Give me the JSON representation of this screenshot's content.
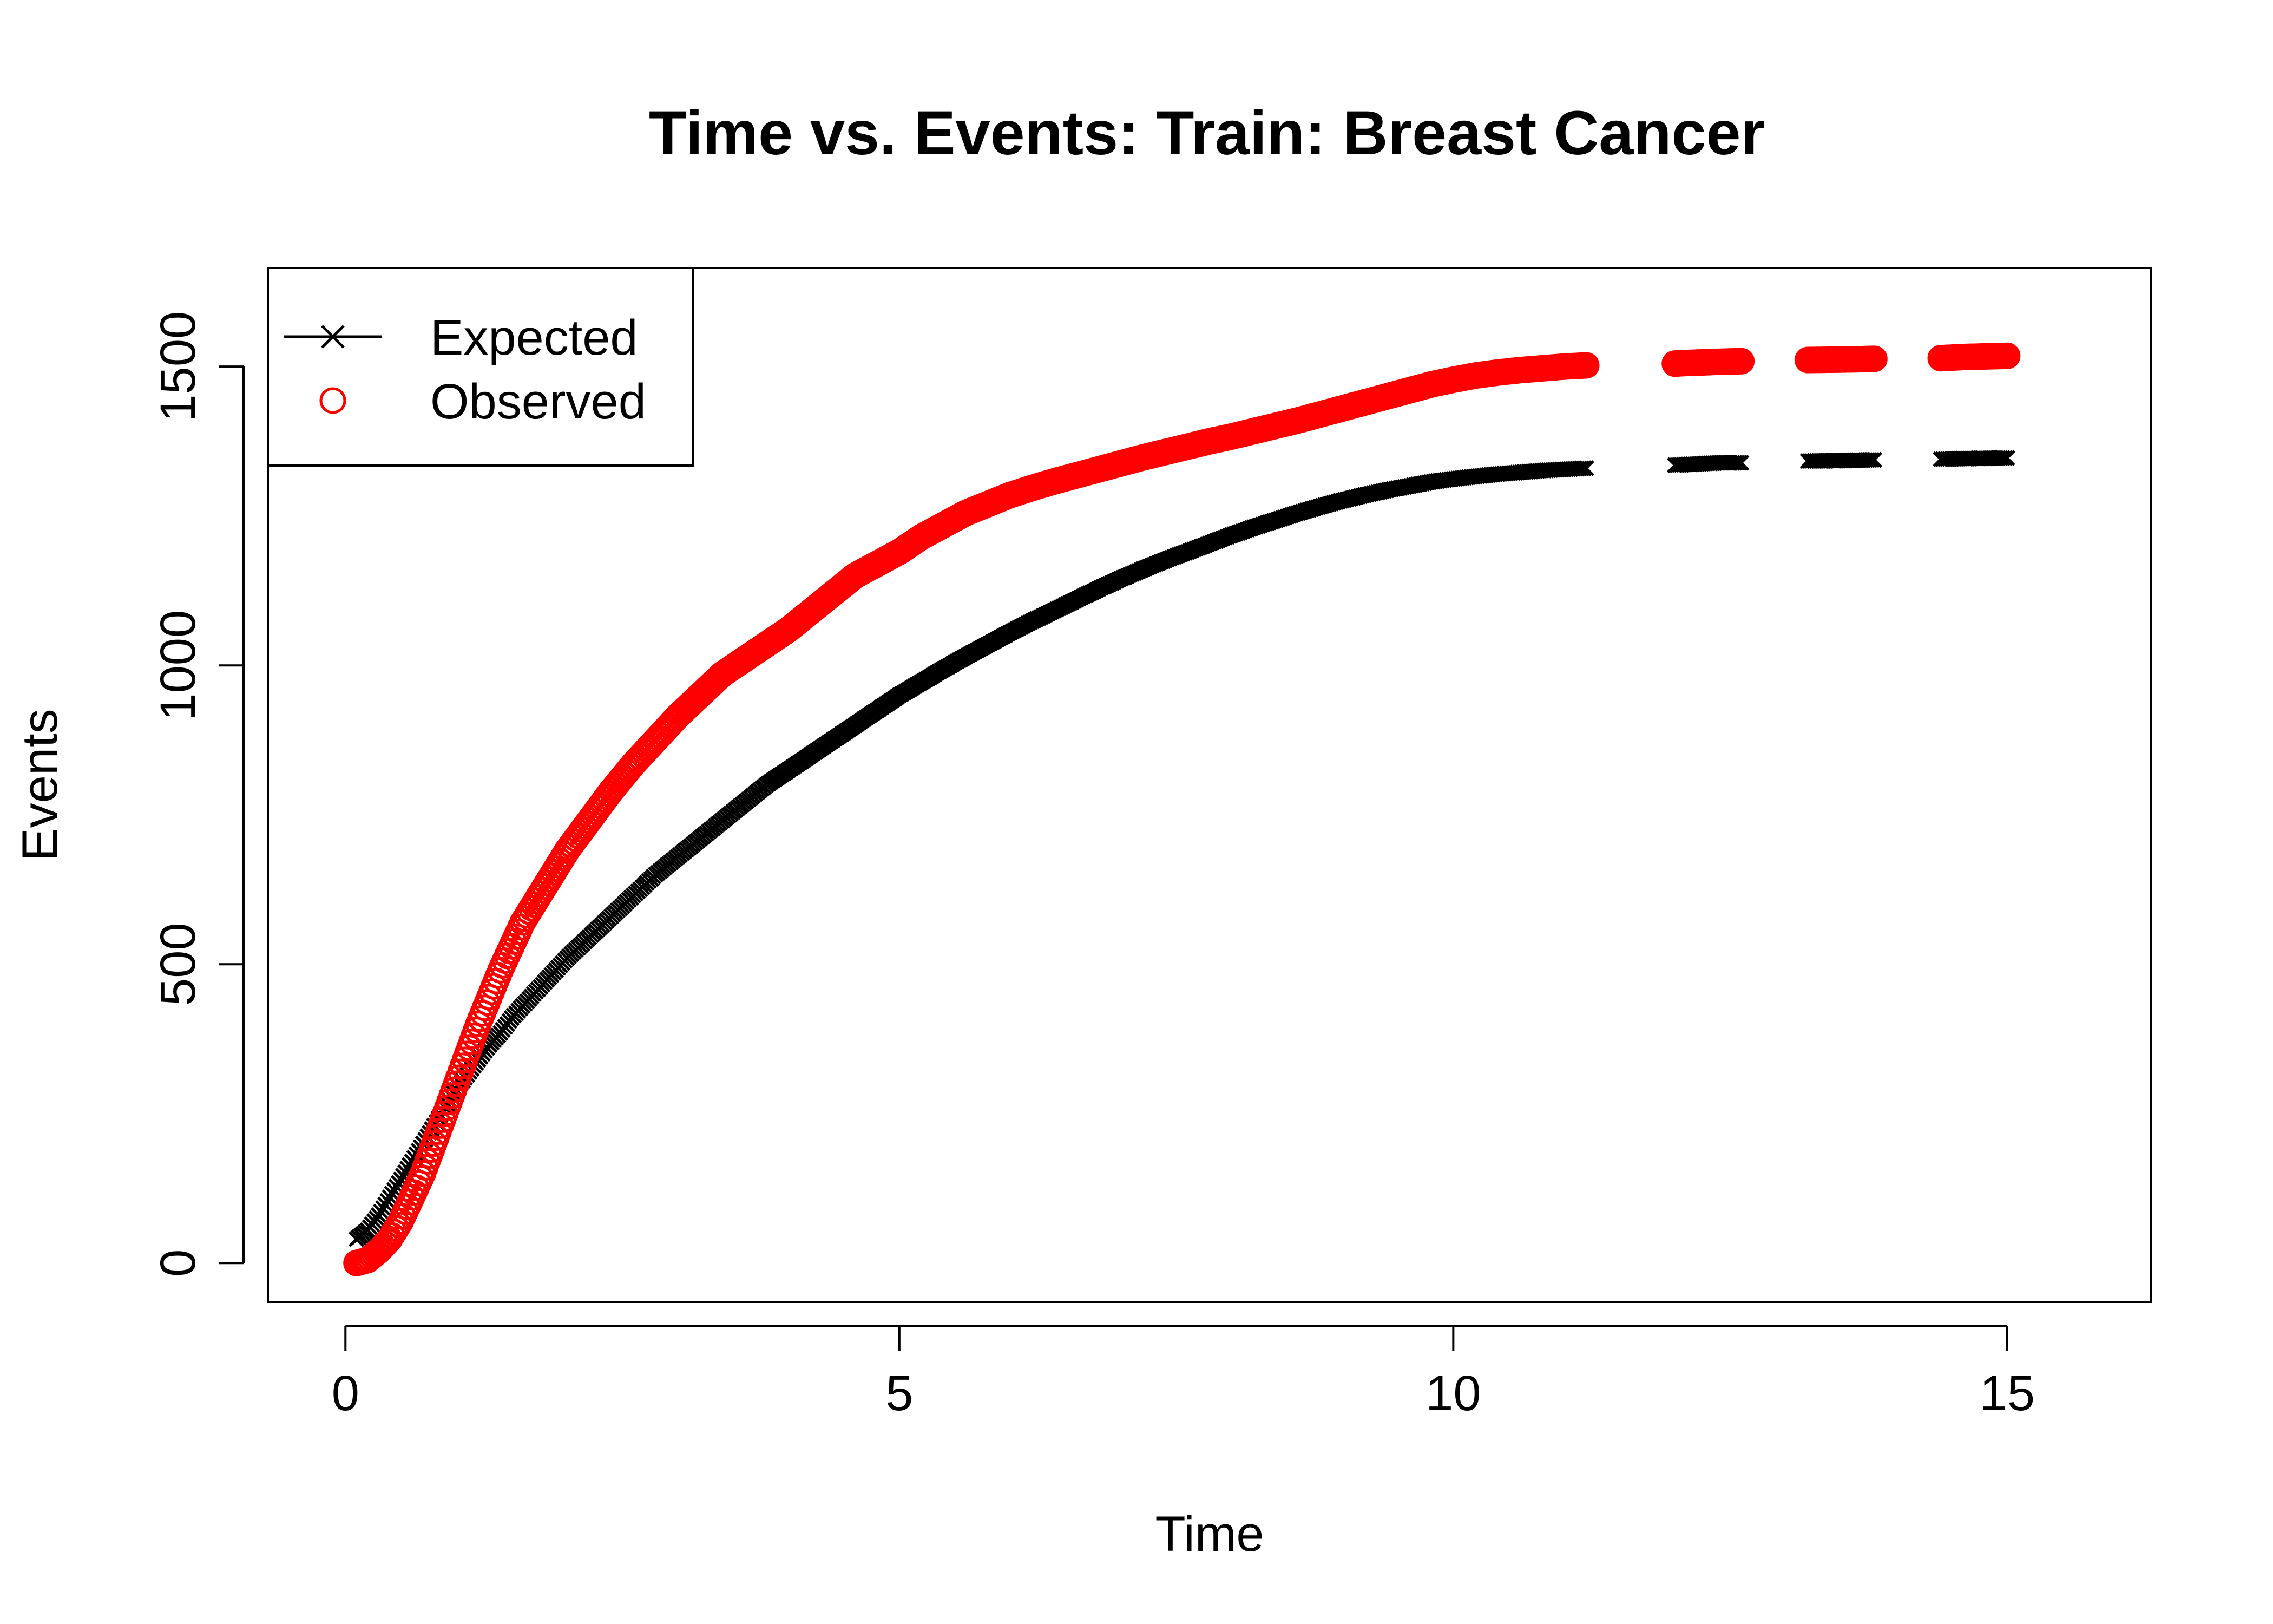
{
  "chart_data": {
    "type": "scatter",
    "title": "Time vs. Events: Train: Breast Cancer",
    "xlabel": "Time",
    "ylabel": "Events",
    "xlim": [
      -0.7,
      16.3
    ],
    "ylim": [
      -65,
      1665
    ],
    "x_ticks": [
      0,
      5,
      10,
      15
    ],
    "x_tick_labels": [
      "0",
      "5",
      "10",
      "15"
    ],
    "y_ticks": [
      0,
      500,
      1000,
      1500
    ],
    "y_tick_labels": [
      "0",
      "500",
      "1000",
      "1500"
    ],
    "legend": {
      "position": "top-left",
      "entries": [
        "Expected",
        "Observed"
      ]
    },
    "colors": {
      "expected": "#000000",
      "observed": "#ff0000",
      "axis": "#000000"
    },
    "series": [
      {
        "name": "Expected",
        "marker": "x",
        "color": "#000000",
        "points": [
          [
            0.1,
            40
          ],
          [
            0.2,
            55
          ],
          [
            0.3,
            80
          ],
          [
            0.4,
            110
          ],
          [
            0.5,
            140
          ],
          [
            0.6,
            170
          ],
          [
            0.7,
            200
          ],
          [
            0.8,
            230
          ],
          [
            0.9,
            260
          ],
          [
            1.0,
            290
          ],
          [
            1.1,
            315
          ],
          [
            1.2,
            340
          ],
          [
            1.3,
            365
          ],
          [
            1.4,
            385
          ],
          [
            1.5,
            410
          ],
          [
            1.6,
            430
          ],
          [
            1.7,
            450
          ],
          [
            1.8,
            470
          ],
          [
            1.9,
            490
          ],
          [
            2.0,
            510
          ],
          [
            2.2,
            545
          ],
          [
            2.4,
            580
          ],
          [
            2.6,
            615
          ],
          [
            2.8,
            650
          ],
          [
            3.0,
            680
          ],
          [
            3.2,
            710
          ],
          [
            3.4,
            740
          ],
          [
            3.6,
            770
          ],
          [
            3.8,
            800
          ],
          [
            4.0,
            825
          ],
          [
            4.2,
            850
          ],
          [
            4.4,
            875
          ],
          [
            4.6,
            900
          ],
          [
            4.8,
            925
          ],
          [
            5.0,
            950
          ],
          [
            5.2,
            972
          ],
          [
            5.4,
            994
          ],
          [
            5.6,
            1015
          ],
          [
            5.8,
            1035
          ],
          [
            6.0,
            1055
          ],
          [
            6.2,
            1074
          ],
          [
            6.4,
            1092
          ],
          [
            6.6,
            1110
          ],
          [
            6.8,
            1128
          ],
          [
            7.0,
            1145
          ],
          [
            7.2,
            1161
          ],
          [
            7.4,
            1176
          ],
          [
            7.6,
            1190
          ],
          [
            7.8,
            1204
          ],
          [
            8.0,
            1218
          ],
          [
            8.2,
            1231
          ],
          [
            8.4,
            1243
          ],
          [
            8.6,
            1255
          ],
          [
            8.8,
            1266
          ],
          [
            9.0,
            1276
          ],
          [
            9.2,
            1285
          ],
          [
            9.4,
            1293
          ],
          [
            9.6,
            1300
          ],
          [
            9.8,
            1307
          ],
          [
            10.0,
            1312
          ],
          [
            10.2,
            1316
          ],
          [
            10.4,
            1320
          ],
          [
            10.6,
            1323
          ],
          [
            10.8,
            1326
          ],
          [
            11.0,
            1328
          ],
          [
            11.2,
            1330
          ],
          [
            12.0,
            1335
          ],
          [
            12.1,
            1336
          ],
          [
            12.4,
            1339
          ],
          [
            12.6,
            1339
          ],
          [
            13.2,
            1342
          ],
          [
            13.6,
            1343
          ],
          [
            13.8,
            1344
          ],
          [
            14.4,
            1345
          ],
          [
            14.6,
            1346
          ],
          [
            15.0,
            1347
          ]
        ]
      },
      {
        "name": "Observed",
        "marker": "circle",
        "color": "#ff0000",
        "points": [
          [
            0.1,
            0
          ],
          [
            0.2,
            5
          ],
          [
            0.3,
            20
          ],
          [
            0.4,
            40
          ],
          [
            0.5,
            70
          ],
          [
            0.6,
            110
          ],
          [
            0.7,
            150
          ],
          [
            0.8,
            200
          ],
          [
            0.9,
            250
          ],
          [
            1.0,
            300
          ],
          [
            1.1,
            350
          ],
          [
            1.2,
            400
          ],
          [
            1.3,
            445
          ],
          [
            1.4,
            490
          ],
          [
            1.5,
            530
          ],
          [
            1.6,
            570
          ],
          [
            1.7,
            600
          ],
          [
            1.8,
            630
          ],
          [
            1.9,
            660
          ],
          [
            2.0,
            690
          ],
          [
            2.2,
            740
          ],
          [
            2.4,
            790
          ],
          [
            2.6,
            835
          ],
          [
            2.8,
            875
          ],
          [
            3.0,
            915
          ],
          [
            3.2,
            950
          ],
          [
            3.4,
            985
          ],
          [
            3.6,
            1010
          ],
          [
            3.8,
            1035
          ],
          [
            4.0,
            1060
          ],
          [
            4.2,
            1090
          ],
          [
            4.4,
            1120
          ],
          [
            4.6,
            1150
          ],
          [
            4.8,
            1170
          ],
          [
            5.0,
            1190
          ],
          [
            5.2,
            1215
          ],
          [
            5.4,
            1235
          ],
          [
            5.6,
            1255
          ],
          [
            5.8,
            1270
          ],
          [
            6.0,
            1285
          ],
          [
            6.2,
            1297
          ],
          [
            6.4,
            1308
          ],
          [
            6.6,
            1318
          ],
          [
            6.8,
            1328
          ],
          [
            7.0,
            1338
          ],
          [
            7.2,
            1348
          ],
          [
            7.4,
            1357
          ],
          [
            7.6,
            1366
          ],
          [
            7.8,
            1375
          ],
          [
            8.0,
            1383
          ],
          [
            8.2,
            1392
          ],
          [
            8.4,
            1401
          ],
          [
            8.6,
            1410
          ],
          [
            8.8,
            1420
          ],
          [
            9.0,
            1430
          ],
          [
            9.2,
            1440
          ],
          [
            9.4,
            1450
          ],
          [
            9.6,
            1460
          ],
          [
            9.8,
            1470
          ],
          [
            10.0,
            1478
          ],
          [
            10.2,
            1485
          ],
          [
            10.4,
            1490
          ],
          [
            10.6,
            1494
          ],
          [
            10.8,
            1497
          ],
          [
            11.0,
            1500
          ],
          [
            11.2,
            1502
          ],
          [
            12.0,
            1505
          ],
          [
            12.1,
            1506
          ],
          [
            12.4,
            1508
          ],
          [
            12.6,
            1509
          ],
          [
            13.2,
            1511
          ],
          [
            13.6,
            1512
          ],
          [
            13.8,
            1513
          ],
          [
            14.4,
            1514
          ],
          [
            14.6,
            1516
          ],
          [
            15.0,
            1518
          ]
        ]
      }
    ]
  }
}
